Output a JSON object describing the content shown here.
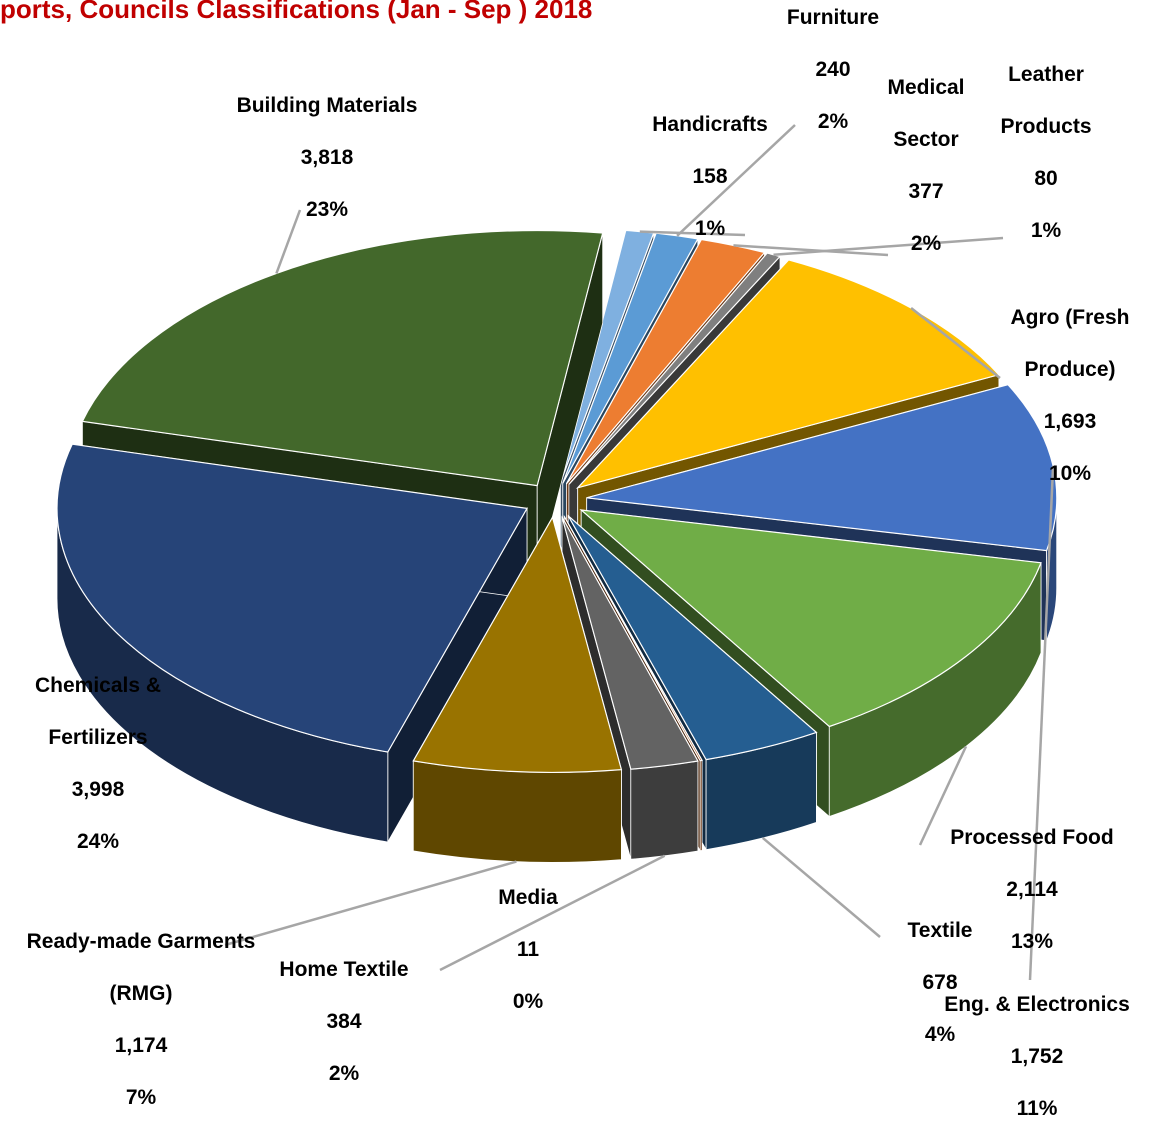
{
  "chart_data": {
    "type": "pie3d",
    "title": "ports, Councils Classifications (Jan - Sep ) 2018",
    "categories": [
      "Handicrafts",
      "Furniture",
      "Medical Sector",
      "Leather Products",
      "Agro (Fresh Produce)",
      "Eng. & Electronics",
      "Processed Food",
      "Textile",
      "Media",
      "Home Textile",
      "Ready-made Garments (RMG)",
      "Chemicals & Fertilizers",
      "Building Materials"
    ],
    "values": [
      158,
      240,
      377,
      80,
      1693,
      1752,
      2114,
      678,
      11,
      384,
      1174,
      3998,
      3818
    ],
    "value_labels": [
      "158",
      "240",
      "377",
      "80",
      "1,693",
      "1,752",
      "2,114",
      "678",
      "11",
      "384",
      "1,174",
      "3,998",
      "3,818"
    ],
    "percents": [
      1,
      2,
      2,
      1,
      10,
      11,
      13,
      4,
      0,
      2,
      7,
      24,
      23
    ],
    "percent_labels": [
      "1%",
      "2%",
      "2%",
      "1%",
      "10%",
      "11%",
      "13%",
      "4%",
      "0%",
      "2%",
      "7%",
      "24%",
      "23%"
    ],
    "colors": [
      "#7fb0e0",
      "#5b9bd5",
      "#ed7d31",
      "#7f7f7f",
      "#ffc000",
      "#4472c4",
      "#70ad47",
      "#255e91",
      "#9e480e",
      "#636363",
      "#997300",
      "#264478",
      "#43682b"
    ]
  }
}
